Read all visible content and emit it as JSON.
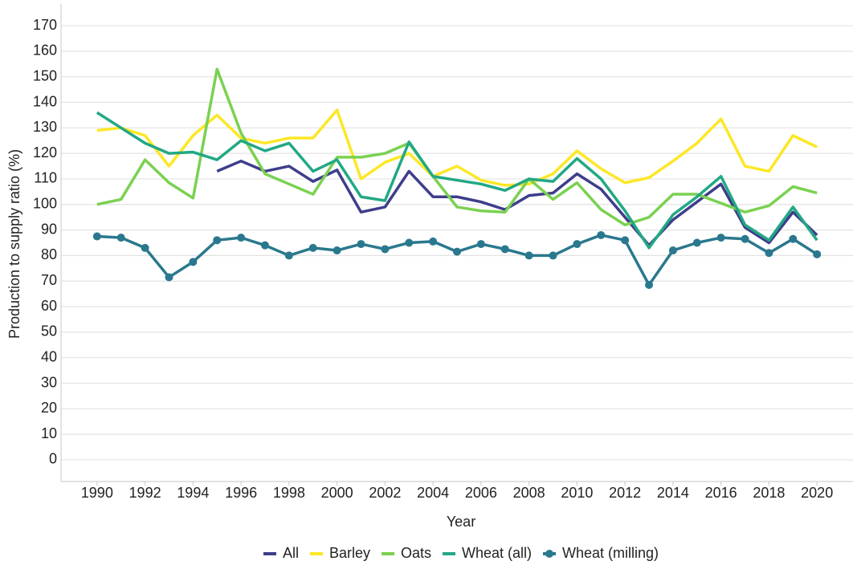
{
  "chart_data": {
    "type": "line",
    "x_label": "Year",
    "y_label": "Production to supply ratio (%)",
    "x": [
      1990,
      1991,
      1992,
      1993,
      1994,
      1995,
      1996,
      1997,
      1998,
      1999,
      2000,
      2001,
      2002,
      2003,
      2004,
      2005,
      2006,
      2007,
      2008,
      2009,
      2010,
      2011,
      2012,
      2013,
      2014,
      2015,
      2016,
      2017,
      2018,
      2019,
      2020
    ],
    "series": [
      {
        "name": "All",
        "color": "#3e3d8c",
        "markers": false,
        "values": [
          null,
          null,
          null,
          null,
          null,
          113,
          117,
          113,
          115,
          109,
          113.5,
          97,
          99,
          113,
          103,
          103,
          101,
          98,
          103.5,
          104.5,
          112,
          106,
          95,
          84,
          94,
          101,
          108,
          91,
          85,
          97,
          88
        ]
      },
      {
        "name": "Barley",
        "color": "#fde725",
        "markers": false,
        "values": [
          129,
          130,
          127,
          115,
          127,
          135,
          126,
          124,
          126,
          126,
          137,
          110,
          116.5,
          120,
          111,
          115,
          109.5,
          107.5,
          108,
          112,
          121,
          114,
          108.5,
          110.5,
          117,
          124,
          133.5,
          115,
          113,
          127,
          122.5
        ]
      },
      {
        "name": "Oats",
        "color": "#7ad151",
        "markers": false,
        "values": [
          100,
          102,
          117.5,
          108.5,
          102.5,
          153,
          128,
          112,
          108,
          104,
          118.5,
          118.5,
          120,
          124,
          111,
          99,
          97.5,
          97,
          110,
          102,
          108.5,
          98,
          92,
          95,
          104,
          104,
          100.5,
          97,
          99.5,
          107,
          104.5
        ]
      },
      {
        "name": "Wheat (all)",
        "color": "#22a884",
        "markers": false,
        "values": [
          136,
          130,
          124,
          120,
          120.5,
          117.5,
          125,
          121,
          124,
          113,
          117.5,
          103,
          101.5,
          124.5,
          111,
          109.5,
          108,
          105.5,
          110,
          109,
          118,
          110,
          97.5,
          83,
          96,
          103,
          111,
          92,
          86,
          99,
          86
        ]
      },
      {
        "name": "Wheat (milling)",
        "color": "#2a788e",
        "markers": true,
        "values": [
          87.5,
          87,
          83,
          71.5,
          77.5,
          86,
          87,
          84,
          80,
          83,
          82,
          84.5,
          82.5,
          85,
          85.5,
          81.5,
          84.5,
          82.5,
          80,
          80,
          84.5,
          88,
          86,
          68.5,
          82,
          85,
          87,
          86.5,
          81,
          86.5,
          80.5
        ]
      }
    ],
    "xlim": [
      1988.5,
      2021.5
    ],
    "ylim": [
      -8.5,
      178.5
    ],
    "xticks": [
      1990,
      1992,
      1994,
      1996,
      1998,
      2000,
      2002,
      2004,
      2006,
      2008,
      2010,
      2012,
      2014,
      2016,
      2018,
      2020
    ],
    "yticks": [
      0,
      10,
      20,
      30,
      40,
      50,
      60,
      70,
      80,
      90,
      100,
      110,
      120,
      130,
      140,
      150,
      160,
      170
    ],
    "grid": true,
    "legend": "bottom"
  }
}
